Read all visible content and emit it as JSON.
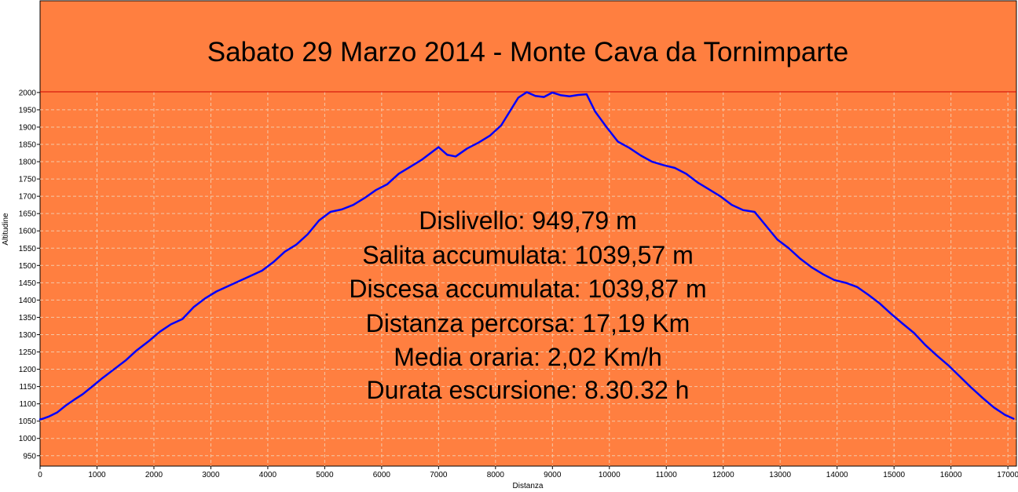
{
  "chart_data": {
    "type": "line",
    "title": "Sabato 29 Marzo 2014 - Monte Cava da Tornimparte",
    "xlabel": "Distanza",
    "ylabel": "Altitudine",
    "xlim": [
      0,
      17150
    ],
    "ylim": [
      920,
      2002
    ],
    "x_ticks": [
      0,
      1000,
      2000,
      3000,
      4000,
      5000,
      6000,
      7000,
      8000,
      9000,
      10000,
      11000,
      12000,
      13000,
      14000,
      15000,
      16000,
      17000
    ],
    "y_ticks": [
      950,
      1000,
      1050,
      1100,
      1150,
      1200,
      1250,
      1300,
      1350,
      1400,
      1450,
      1500,
      1550,
      1600,
      1650,
      1700,
      1750,
      1800,
      1850,
      1900,
      1950,
      2000
    ],
    "x_tick_labels": [
      "0",
      "1000",
      "2000",
      "3000",
      "4000",
      "5000",
      "6000",
      "7000",
      "8000",
      "9000",
      "10000",
      "11000",
      "12000",
      "13000",
      "14000",
      "15000",
      "16000",
      "17000"
    ],
    "y_tick_labels": [
      "950",
      "1000",
      "1050",
      "1100",
      "1150",
      "1200",
      "1250",
      "1300",
      "1350",
      "1400",
      "1450",
      "1500",
      "1550",
      "1600",
      "1650",
      "1700",
      "1750",
      "1800",
      "1850",
      "1900",
      "1950",
      "2000"
    ],
    "grid": true,
    "colors": {
      "header_background": "#ff7f40",
      "plot_background": "#ff7f40",
      "line": "#0000ff",
      "top_reference_line": "#cc0000",
      "grid": "#f3c8a8"
    },
    "series": [
      {
        "x": [
          0,
          50,
          150,
          300,
          450,
          600,
          750,
          900,
          1100,
          1300,
          1500,
          1700,
          1900,
          2100,
          2300,
          2500,
          2700,
          2900,
          3100,
          3300,
          3500,
          3700,
          3900,
          4100,
          4300,
          4500,
          4700,
          4900,
          5100,
          5300,
          5500,
          5700,
          5900,
          6100,
          6300,
          6500,
          6700,
          6900,
          7000,
          7150,
          7300,
          7500,
          7700,
          7900,
          8100,
          8250,
          8400,
          8550,
          8700,
          8850,
          9000,
          9150,
          9300,
          9450,
          9600,
          9750,
          9950,
          10150,
          10350,
          10550,
          10750,
          10950,
          11150,
          11350,
          11550,
          11750,
          11950,
          12150,
          12350,
          12550,
          12750,
          12950,
          13150,
          13350,
          13550,
          13750,
          13950,
          14150,
          14350,
          14550,
          14750,
          14950,
          15150,
          15350,
          15550,
          15750,
          15950,
          16150,
          16350,
          16550,
          16750,
          16950,
          17100
        ],
        "values": [
          1055,
          1057,
          1063,
          1075,
          1095,
          1112,
          1128,
          1148,
          1175,
          1200,
          1225,
          1255,
          1280,
          1308,
          1330,
          1345,
          1380,
          1405,
          1425,
          1440,
          1455,
          1470,
          1485,
          1510,
          1540,
          1560,
          1590,
          1630,
          1655,
          1662,
          1675,
          1695,
          1718,
          1735,
          1765,
          1785,
          1805,
          1830,
          1842,
          1820,
          1815,
          1838,
          1855,
          1875,
          1905,
          1945,
          1985,
          2001,
          1990,
          1987,
          2000,
          1992,
          1989,
          1993,
          1995,
          1945,
          1900,
          1858,
          1840,
          1818,
          1800,
          1790,
          1782,
          1765,
          1740,
          1720,
          1700,
          1675,
          1660,
          1655,
          1615,
          1575,
          1550,
          1520,
          1495,
          1475,
          1458,
          1450,
          1438,
          1415,
          1390,
          1360,
          1332,
          1305,
          1270,
          1240,
          1212,
          1180,
          1148,
          1118,
          1090,
          1068,
          1057
        ]
      }
    ]
  },
  "stats": {
    "dislivello": "Dislivello: 949,79 m",
    "salita": "Salita accumulata: 1039,57 m",
    "discesa": "Discesa accumulata: 1039,87 m",
    "distanza": "Distanza percorsa: 17,19 Km",
    "media": "Media oraria: 2,02 Km/h",
    "durata": "Durata escursione: 8.30.32 h"
  }
}
